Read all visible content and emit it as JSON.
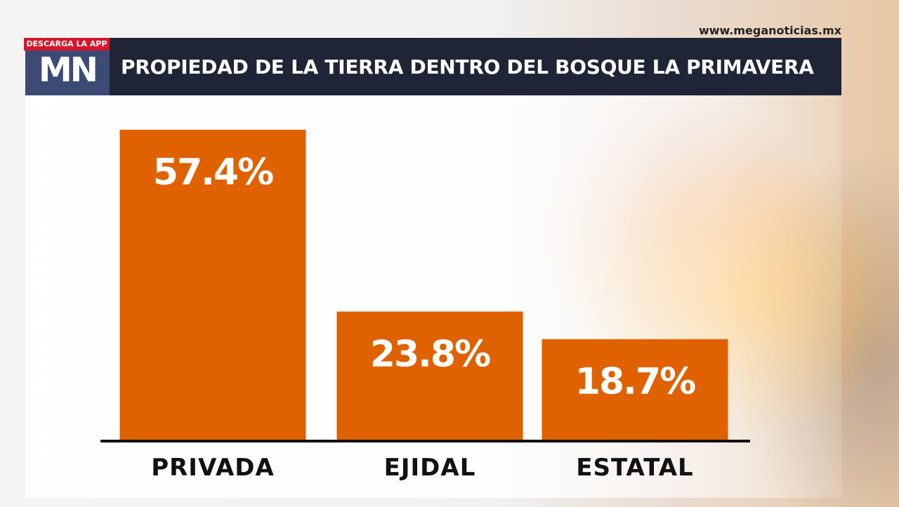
{
  "site": {
    "url": "www.meganoticias.mx"
  },
  "brand": {
    "logo_text": "MN",
    "badge": "DESCARGA LA APP"
  },
  "colors": {
    "bar": "#e06100",
    "header": "#1f2436",
    "logo": "#3d4a74",
    "badge": "#d6172a"
  },
  "chart_data": {
    "type": "bar",
    "title": "PROPIEDAD DE LA TIERRA DENTRO DEL BOSQUE LA PRIMAVERA",
    "categories": [
      "PRIVADA",
      "EJIDAL",
      "ESTATAL"
    ],
    "values": [
      57.4,
      23.8,
      18.7
    ],
    "value_labels": [
      "57.4%",
      "23.8%",
      "18.7%"
    ],
    "unit": "%",
    "ylim": [
      0,
      60
    ],
    "grid": false,
    "legend": "none"
  }
}
